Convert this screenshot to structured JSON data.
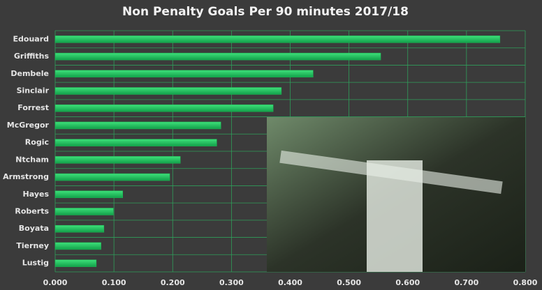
{
  "chart_data": {
    "type": "barh",
    "title": "Non Penalty Goals Per 90 minutes 2017/18",
    "categories": [
      "Edouard",
      "Griffiths",
      "Dembele",
      "Sinclair",
      "Forrest",
      "McGregor",
      "Rogic",
      "Ntcham",
      "Armstrong",
      "Hayes",
      "Roberts",
      "Boyata",
      "Tierney",
      "Lustig"
    ],
    "values": [
      0.757,
      0.554,
      0.439,
      0.385,
      0.371,
      0.282,
      0.275,
      0.213,
      0.195,
      0.115,
      0.099,
      0.083,
      0.078,
      0.07
    ],
    "color": "#1db954",
    "xlim": [
      0,
      0.8
    ],
    "xticks": [
      {
        "value": 0,
        "label": "0.000"
      },
      {
        "value": 0.1,
        "label": "0.100"
      },
      {
        "value": 0.2,
        "label": "0.200"
      },
      {
        "value": 0.3,
        "label": "0.300"
      },
      {
        "value": 0.4,
        "label": "0.400"
      },
      {
        "value": 0.5,
        "label": "0.500"
      },
      {
        "value": 0.6,
        "label": "0.600"
      },
      {
        "value": 0.7,
        "label": "0.700"
      },
      {
        "value": 0.8,
        "label": "0.800"
      }
    ],
    "grid": true
  }
}
